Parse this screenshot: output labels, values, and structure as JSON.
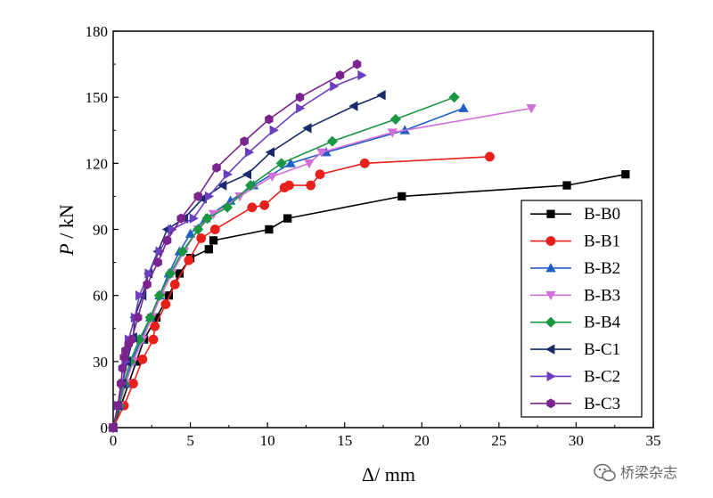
{
  "chart_data": {
    "type": "line",
    "title": "",
    "xlabel": "Δ/ mm",
    "ylabel_italic": "P",
    "ylabel_rest": " / kN",
    "xlim": [
      0,
      35
    ],
    "ylim": [
      0,
      180
    ],
    "xticks": [
      0,
      5,
      10,
      15,
      20,
      25,
      30,
      35
    ],
    "yticks": [
      0,
      30,
      60,
      90,
      120,
      150,
      180
    ],
    "grid": false,
    "legend_position": "right",
    "series": [
      {
        "name": "B-B0",
        "color": "#000000",
        "marker": "square",
        "points": [
          [
            0,
            0
          ],
          [
            0.5,
            10
          ],
          [
            1,
            20
          ],
          [
            1.5,
            30
          ],
          [
            2,
            40
          ],
          [
            2.8,
            50
          ],
          [
            3.6,
            60
          ],
          [
            4.3,
            70
          ],
          [
            5,
            77
          ],
          [
            6.2,
            81
          ],
          [
            6.5,
            85
          ],
          [
            10.1,
            90
          ],
          [
            11.3,
            95
          ],
          [
            18.7,
            105
          ],
          [
            29.4,
            110
          ],
          [
            33.2,
            115
          ]
        ]
      },
      {
        "name": "B-B1",
        "color": "#e8201c",
        "marker": "circle",
        "points": [
          [
            0,
            0
          ],
          [
            0.7,
            10
          ],
          [
            1.3,
            20
          ],
          [
            1.9,
            31
          ],
          [
            2.6,
            40
          ],
          [
            2.7,
            46
          ],
          [
            3.4,
            56
          ],
          [
            4,
            65
          ],
          [
            4.9,
            76
          ],
          [
            5.7,
            86
          ],
          [
            6.6,
            90
          ],
          [
            9,
            100
          ],
          [
            9.8,
            101
          ],
          [
            11.1,
            109
          ],
          [
            11.4,
            110
          ],
          [
            12.8,
            110
          ],
          [
            13.4,
            115
          ],
          [
            16.3,
            120
          ],
          [
            24.4,
            123
          ]
        ]
      },
      {
        "name": "B-B2",
        "color": "#1f5fc4",
        "marker": "triangle-up",
        "points": [
          [
            0,
            0
          ],
          [
            0.4,
            10
          ],
          [
            0.8,
            20
          ],
          [
            1.2,
            30
          ],
          [
            1.8,
            40
          ],
          [
            2.4,
            50
          ],
          [
            3,
            60
          ],
          [
            3.6,
            70
          ],
          [
            4.3,
            80
          ],
          [
            5,
            88
          ],
          [
            6,
            95
          ],
          [
            7.6,
            103
          ],
          [
            9.1,
            110
          ],
          [
            11.5,
            120
          ],
          [
            13.8,
            125
          ],
          [
            18.9,
            135
          ],
          [
            22.7,
            145
          ]
        ]
      },
      {
        "name": "B-B3",
        "color": "#d070d8",
        "marker": "triangle-down",
        "points": [
          [
            0,
            0
          ],
          [
            0.4,
            10
          ],
          [
            0.8,
            20
          ],
          [
            1.3,
            30
          ],
          [
            1.9,
            40
          ],
          [
            2.5,
            50
          ],
          [
            3.1,
            60
          ],
          [
            3.8,
            70
          ],
          [
            4.6,
            80
          ],
          [
            5.5,
            90
          ],
          [
            6.5,
            97
          ],
          [
            8.2,
            105
          ],
          [
            10.3,
            114
          ],
          [
            12.7,
            120
          ],
          [
            13.5,
            125
          ],
          [
            18.1,
            134
          ],
          [
            27.1,
            145
          ]
        ]
      },
      {
        "name": "B-B4",
        "color": "#1a9642",
        "marker": "diamond",
        "points": [
          [
            0,
            0
          ],
          [
            0.4,
            10
          ],
          [
            0.7,
            20
          ],
          [
            1.1,
            30
          ],
          [
            1.7,
            40
          ],
          [
            2.4,
            50
          ],
          [
            3,
            60
          ],
          [
            3.7,
            70
          ],
          [
            4.5,
            80
          ],
          [
            5.5,
            90
          ],
          [
            6.1,
            95
          ],
          [
            7.4,
            100
          ],
          [
            8.9,
            110
          ],
          [
            10.9,
            120
          ],
          [
            14.2,
            130
          ],
          [
            18.3,
            140
          ],
          [
            22.1,
            150
          ]
        ]
      },
      {
        "name": "B-C1",
        "color": "#1a2a6c",
        "marker": "triangle-left",
        "points": [
          [
            0,
            0
          ],
          [
            0.3,
            10
          ],
          [
            0.6,
            20
          ],
          [
            0.9,
            30
          ],
          [
            1.3,
            41
          ],
          [
            1.4,
            50
          ],
          [
            1.9,
            60
          ],
          [
            2.3,
            70
          ],
          [
            2.9,
            80
          ],
          [
            3.5,
            90
          ],
          [
            4.6,
            95
          ],
          [
            5.8,
            104
          ],
          [
            7.1,
            110
          ],
          [
            8.7,
            115
          ],
          [
            10.2,
            125
          ],
          [
            12.6,
            136
          ],
          [
            15.6,
            146
          ],
          [
            17.4,
            151
          ]
        ]
      },
      {
        "name": "B-C2",
        "color": "#6a3fc0",
        "marker": "triangle-right",
        "points": [
          [
            0,
            0
          ],
          [
            0.3,
            10
          ],
          [
            0.6,
            20
          ],
          [
            0.8,
            30
          ],
          [
            1,
            40
          ],
          [
            1.4,
            50
          ],
          [
            1.7,
            60
          ],
          [
            2.3,
            70
          ],
          [
            3,
            80
          ],
          [
            3.8,
            90
          ],
          [
            5.2,
            95
          ],
          [
            6.2,
            105
          ],
          [
            7.4,
            115
          ],
          [
            8.8,
            125
          ],
          [
            10.4,
            135
          ],
          [
            12.1,
            145
          ],
          [
            14.3,
            155
          ],
          [
            16.1,
            160
          ]
        ]
      },
      {
        "name": "B-C3",
        "color": "#7b2490",
        "marker": "hexagon",
        "points": [
          [
            0,
            0
          ],
          [
            0.3,
            10
          ],
          [
            0.5,
            20
          ],
          [
            0.6,
            27
          ],
          [
            0.7,
            32
          ],
          [
            0.8,
            35
          ],
          [
            1,
            38
          ],
          [
            1.2,
            40
          ],
          [
            1.6,
            50
          ],
          [
            2.2,
            65
          ],
          [
            2.9,
            75
          ],
          [
            3.5,
            85
          ],
          [
            4.4,
            95
          ],
          [
            5.5,
            105
          ],
          [
            6.7,
            118
          ],
          [
            8.5,
            130
          ],
          [
            10.1,
            140
          ],
          [
            12.1,
            150
          ],
          [
            14.7,
            160
          ],
          [
            15.8,
            165
          ]
        ]
      }
    ]
  },
  "watermark": {
    "text": "桥梁杂志",
    "icon": "wechat-icon"
  }
}
